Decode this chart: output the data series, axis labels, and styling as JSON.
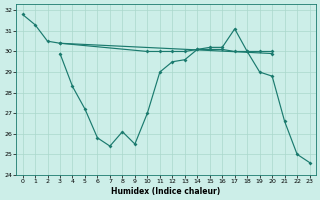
{
  "xlabel": "Humidex (Indice chaleur)",
  "bg_color": "#cceee8",
  "line_color": "#1a7a6e",
  "grid_color": "#aad8cc",
  "xlim": [
    -0.5,
    23.5
  ],
  "ylim": [
    24,
    32.3
  ],
  "xticks": [
    0,
    1,
    2,
    3,
    4,
    5,
    6,
    7,
    8,
    9,
    10,
    11,
    12,
    13,
    14,
    15,
    16,
    17,
    18,
    19,
    20,
    21,
    22,
    23
  ],
  "yticks": [
    24,
    25,
    26,
    27,
    28,
    29,
    30,
    31,
    32
  ],
  "s1x": [
    0,
    1,
    2,
    3,
    10,
    11,
    12,
    13,
    14,
    15,
    16,
    17,
    18,
    19,
    20
  ],
  "s1y": [
    31.8,
    31.3,
    30.5,
    30.4,
    30.0,
    30.0,
    30.0,
    30.0,
    30.1,
    30.1,
    30.1,
    30.0,
    30.0,
    30.0,
    30.0
  ],
  "s2x": [
    3,
    4,
    5,
    6,
    7,
    8,
    9,
    10,
    11,
    12,
    13,
    14,
    15,
    16,
    17,
    18,
    19,
    20,
    21,
    22,
    23
  ],
  "s2y": [
    29.9,
    28.3,
    27.2,
    25.8,
    25.4,
    26.1,
    25.5,
    27.0,
    29.0,
    29.5,
    29.6,
    30.1,
    30.2,
    30.2,
    31.1,
    30.0,
    29.0,
    28.8,
    26.6,
    25.0,
    24.6
  ],
  "s3x": [
    3,
    20
  ],
  "s3y": [
    30.4,
    29.9
  ]
}
